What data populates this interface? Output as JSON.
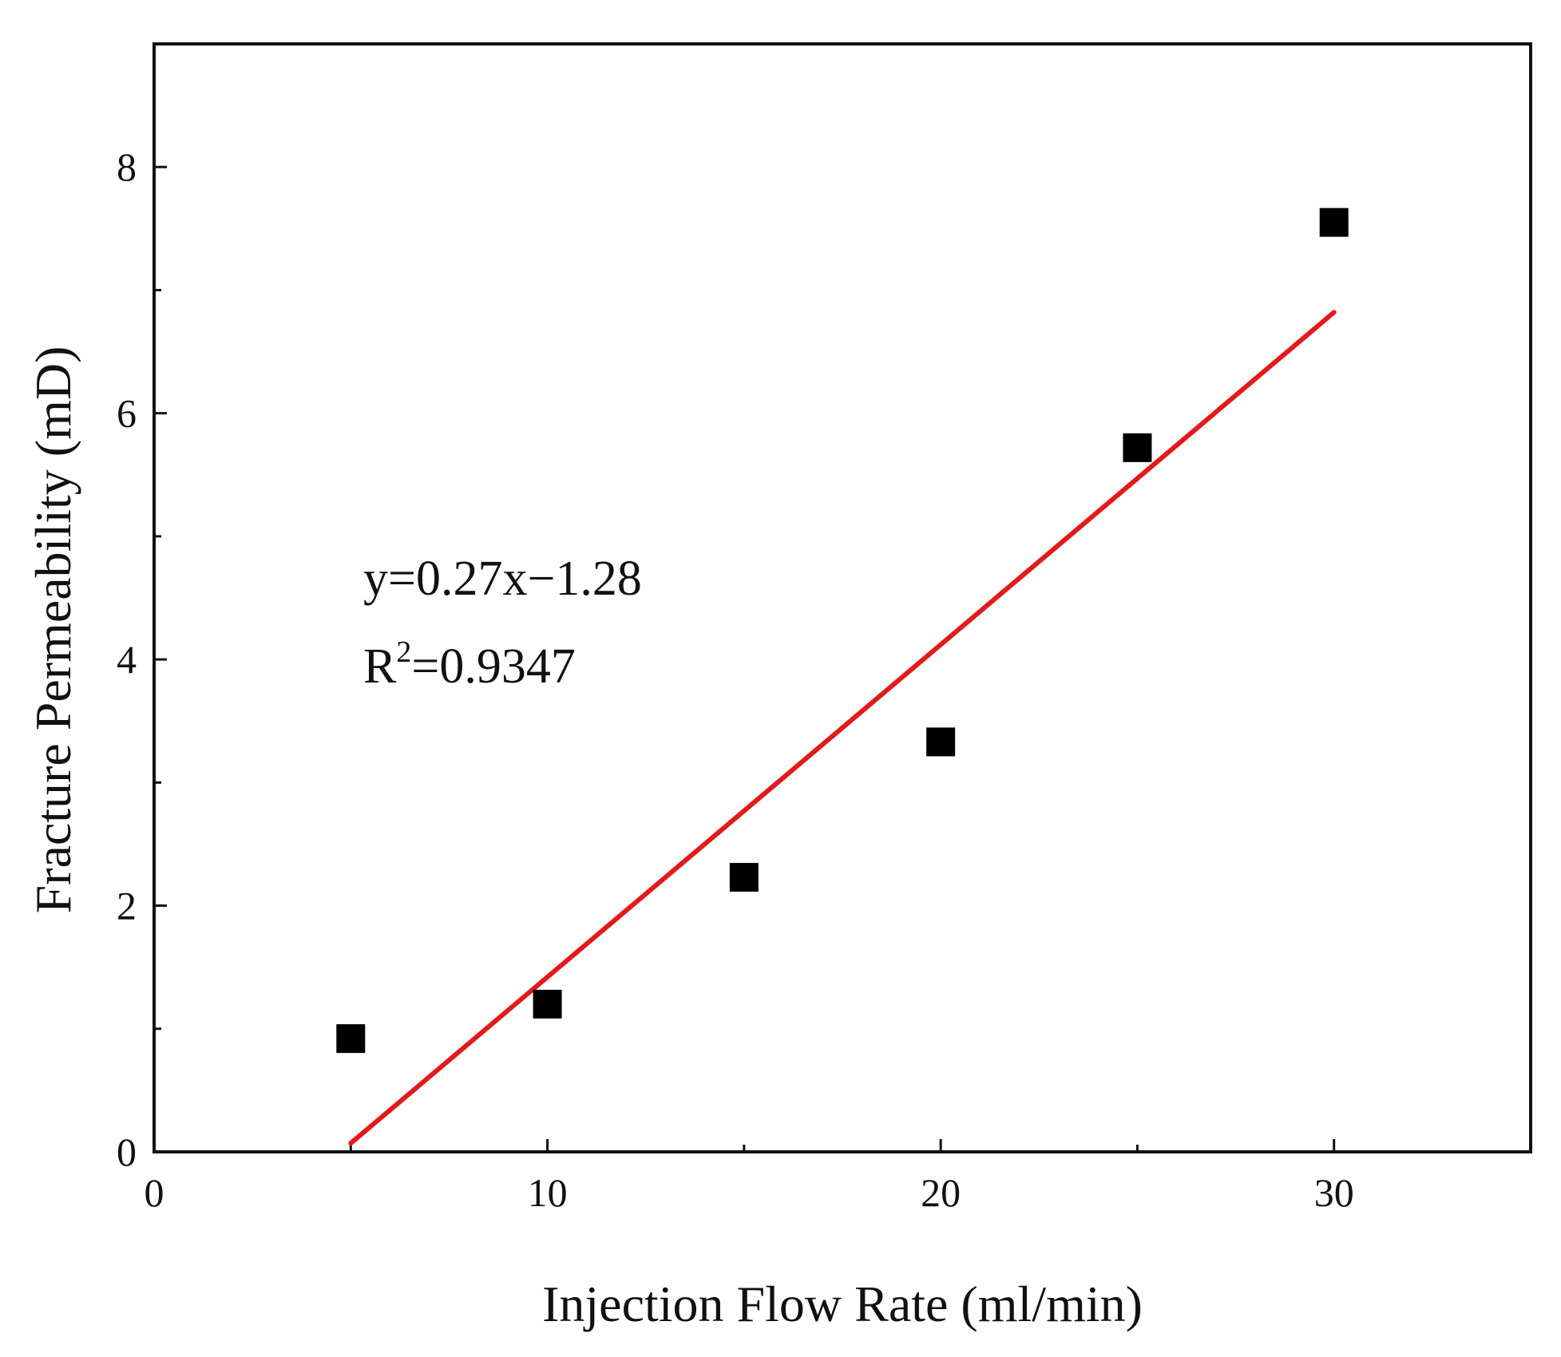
{
  "chart_data": {
    "type": "scatter",
    "title": "",
    "xlabel": "Injection Flow Rate (ml/min)",
    "ylabel": "Fracture Permeability (mD)",
    "xlim": [
      0,
      35
    ],
    "ylim": [
      0,
      9
    ],
    "xticks": [
      0,
      10,
      20,
      30
    ],
    "yticks": [
      0,
      2,
      4,
      6,
      8
    ],
    "xtick_labels": [
      "0",
      "10",
      "20",
      "30"
    ],
    "ytick_labels": [
      "0",
      "2",
      "4",
      "6",
      "8"
    ],
    "series": [
      {
        "name": "data",
        "marker": "square",
        "color": "#000000",
        "x": [
          5,
          10,
          15,
          20,
          25,
          30
        ],
        "y": [
          0.92,
          1.2,
          2.23,
          3.33,
          5.72,
          7.55
        ]
      }
    ],
    "fit": {
      "type": "linear",
      "slope": 0.27,
      "intercept": -1.28,
      "x_range": [
        5,
        30
      ],
      "color": "#e31a1c"
    },
    "annotations": {
      "equation": "y=0.27x−1.28",
      "r2_prefix": "R",
      "r2_sup": "2",
      "r2_value": "=0.9347"
    },
    "grid": false,
    "legend": "none"
  }
}
